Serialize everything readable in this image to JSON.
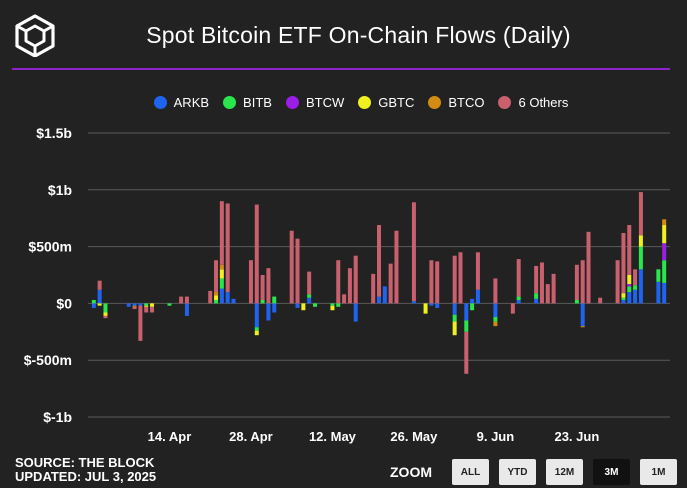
{
  "title": "Spot Bitcoin ETF On-Chain Flows (Daily)",
  "legend": [
    {
      "name": "ARKB",
      "color": "#1e64f0"
    },
    {
      "name": "BITB",
      "color": "#28e64b"
    },
    {
      "name": "BTCW",
      "color": "#9b1ee6"
    },
    {
      "name": "GBTC",
      "color": "#f0f01e"
    },
    {
      "name": "BTCO",
      "color": "#d28c14"
    },
    {
      "name": "6 Others",
      "color": "#c8606e"
    }
  ],
  "footer": {
    "source": "SOURCE: THE BLOCK",
    "updated": "UPDATED: JUL 3, 2025"
  },
  "zoom": {
    "label": "ZOOM",
    "buttons": [
      "ALL",
      "YTD",
      "12M",
      "3M",
      "1M"
    ],
    "active": "3M"
  },
  "chart_data": {
    "type": "bar",
    "stacked": true,
    "y_ticks": [
      "$1.5b",
      "$1b",
      "$500m",
      "$0",
      "$-500m",
      "$-1b"
    ],
    "y_tick_values": [
      1500,
      1000,
      500,
      0,
      -500,
      -1000
    ],
    "ylim": [
      -1000,
      1500
    ],
    "y_unit": "millions USD",
    "x_ticks": [
      "14. Apr",
      "28. Apr",
      "12. May",
      "26. May",
      "9. Jun",
      "23. Jun"
    ],
    "x_tick_dates": [
      "2025-04-14",
      "2025-04-28",
      "2025-05-12",
      "2025-05-26",
      "2025-06-09",
      "2025-06-23"
    ],
    "grid": "horizontal",
    "legend_position": "top-center",
    "series_order": [
      "ARKB",
      "BITB",
      "BTCW",
      "GBTC",
      "BTCO",
      "6 Others"
    ],
    "days": [
      {
        "date": "2025-04-01",
        "v": [
          -40,
          30,
          0,
          0,
          0,
          0
        ]
      },
      {
        "date": "2025-04-02",
        "v": [
          120,
          0,
          0,
          -20,
          0,
          80
        ]
      },
      {
        "date": "2025-04-03",
        "v": [
          0,
          -80,
          0,
          -30,
          0,
          -20
        ]
      },
      {
        "date": "2025-04-07",
        "v": [
          -30,
          0,
          0,
          0,
          0,
          0
        ]
      },
      {
        "date": "2025-04-08",
        "v": [
          -20,
          0,
          0,
          0,
          -10,
          -20
        ]
      },
      {
        "date": "2025-04-09",
        "v": [
          -20,
          0,
          0,
          0,
          0,
          -310
        ]
      },
      {
        "date": "2025-04-10",
        "v": [
          0,
          -20,
          0,
          -10,
          0,
          -50
        ]
      },
      {
        "date": "2025-04-11",
        "v": [
          0,
          0,
          0,
          -30,
          0,
          -50
        ]
      },
      {
        "date": "2025-04-14",
        "v": [
          0,
          -20,
          0,
          0,
          0,
          0
        ]
      },
      {
        "date": "2025-04-15",
        "v": [
          0,
          0,
          0,
          0,
          0,
          0
        ]
      },
      {
        "date": "2025-04-16",
        "v": [
          0,
          0,
          0,
          0,
          0,
          60
        ]
      },
      {
        "date": "2025-04-17",
        "v": [
          -110,
          0,
          0,
          0,
          0,
          60
        ]
      },
      {
        "date": "2025-04-21",
        "v": [
          0,
          0,
          0,
          0,
          0,
          110
        ]
      },
      {
        "date": "2025-04-22",
        "v": [
          0,
          30,
          0,
          40,
          30,
          280
        ]
      },
      {
        "date": "2025-04-23",
        "v": [
          130,
          90,
          0,
          80,
          40,
          560
        ]
      },
      {
        "date": "2025-04-24",
        "v": [
          100,
          0,
          0,
          0,
          0,
          780
        ]
      },
      {
        "date": "2025-04-25",
        "v": [
          40,
          0,
          0,
          0,
          0,
          0
        ]
      },
      {
        "date": "2025-04-28",
        "v": [
          0,
          0,
          0,
          0,
          0,
          380
        ]
      },
      {
        "date": "2025-04-29",
        "v": [
          -210,
          -30,
          0,
          -40,
          0,
          870
        ]
      },
      {
        "date": "2025-04-30",
        "v": [
          0,
          30,
          0,
          0,
          0,
          220
        ]
      },
      {
        "date": "2025-05-01",
        "v": [
          -150,
          0,
          0,
          0,
          0,
          310
        ]
      },
      {
        "date": "2025-05-02",
        "v": [
          -80,
          60,
          0,
          0,
          0,
          0
        ]
      },
      {
        "date": "2025-05-05",
        "v": [
          0,
          0,
          0,
          0,
          0,
          640
        ]
      },
      {
        "date": "2025-05-06",
        "v": [
          -40,
          0,
          0,
          0,
          0,
          570
        ]
      },
      {
        "date": "2025-05-07",
        "v": [
          0,
          0,
          0,
          -60,
          0,
          0
        ]
      },
      {
        "date": "2025-05-08",
        "v": [
          50,
          30,
          0,
          0,
          0,
          200
        ]
      },
      {
        "date": "2025-05-09",
        "v": [
          0,
          -30,
          0,
          0,
          0,
          0
        ]
      },
      {
        "date": "2025-05-12",
        "v": [
          0,
          -20,
          0,
          -40,
          0,
          0
        ]
      },
      {
        "date": "2025-05-13",
        "v": [
          0,
          -30,
          0,
          0,
          0,
          380
        ]
      },
      {
        "date": "2025-05-14",
        "v": [
          0,
          0,
          0,
          0,
          0,
          80
        ]
      },
      {
        "date": "2025-05-15",
        "v": [
          0,
          0,
          0,
          0,
          0,
          310
        ]
      },
      {
        "date": "2025-05-16",
        "v": [
          -160,
          0,
          0,
          0,
          0,
          420
        ]
      },
      {
        "date": "2025-05-19",
        "v": [
          0,
          0,
          0,
          0,
          0,
          260
        ]
      },
      {
        "date": "2025-05-20",
        "v": [
          60,
          0,
          0,
          0,
          0,
          630
        ]
      },
      {
        "date": "2025-05-21",
        "v": [
          150,
          0,
          0,
          0,
          0,
          0
        ]
      },
      {
        "date": "2025-05-22",
        "v": [
          0,
          0,
          0,
          0,
          0,
          350
        ]
      },
      {
        "date": "2025-05-23",
        "v": [
          0,
          0,
          0,
          0,
          0,
          640
        ]
      },
      {
        "date": "2025-05-26",
        "v": [
          20,
          0,
          0,
          0,
          0,
          870
        ]
      },
      {
        "date": "2025-05-28",
        "v": [
          0,
          0,
          0,
          -90,
          0,
          0
        ]
      },
      {
        "date": "2025-05-29",
        "v": [
          -20,
          0,
          0,
          0,
          0,
          380
        ]
      },
      {
        "date": "2025-05-30",
        "v": [
          -40,
          0,
          0,
          0,
          0,
          370
        ]
      },
      {
        "date": "2025-06-02",
        "v": [
          -100,
          -60,
          0,
          -120,
          0,
          420
        ]
      },
      {
        "date": "2025-06-03",
        "v": [
          0,
          0,
          0,
          0,
          0,
          450
        ]
      },
      {
        "date": "2025-06-04",
        "v": [
          -150,
          -100,
          0,
          0,
          0,
          -370
        ]
      },
      {
        "date": "2025-06-05",
        "v": [
          40,
          -60,
          0,
          0,
          0,
          0
        ]
      },
      {
        "date": "2025-06-06",
        "v": [
          120,
          0,
          0,
          0,
          0,
          330
        ]
      },
      {
        "date": "2025-06-09",
        "v": [
          -120,
          -40,
          0,
          0,
          -40,
          220
        ]
      },
      {
        "date": "2025-06-10",
        "v": [
          0,
          0,
          0,
          0,
          0,
          0
        ]
      },
      {
        "date": "2025-06-12",
        "v": [
          0,
          0,
          0,
          0,
          0,
          -90
        ]
      },
      {
        "date": "2025-06-13",
        "v": [
          30,
          30,
          0,
          0,
          0,
          330
        ]
      },
      {
        "date": "2025-06-16",
        "v": [
          40,
          50,
          0,
          0,
          0,
          240
        ]
      },
      {
        "date": "2025-06-17",
        "v": [
          0,
          0,
          0,
          0,
          0,
          360
        ]
      },
      {
        "date": "2025-06-18",
        "v": [
          0,
          0,
          0,
          0,
          0,
          170
        ]
      },
      {
        "date": "2025-06-19",
        "v": [
          0,
          0,
          0,
          0,
          0,
          260
        ]
      },
      {
        "date": "2025-06-23",
        "v": [
          0,
          30,
          0,
          0,
          0,
          310
        ]
      },
      {
        "date": "2025-06-24",
        "v": [
          -200,
          0,
          0,
          0,
          -10,
          380
        ]
      },
      {
        "date": "2025-06-25",
        "v": [
          0,
          0,
          0,
          0,
          0,
          630
        ]
      },
      {
        "date": "2025-06-27",
        "v": [
          0,
          0,
          0,
          0,
          0,
          50
        ]
      },
      {
        "date": "2025-06-30",
        "v": [
          0,
          0,
          0,
          0,
          0,
          380
        ]
      },
      {
        "date": "2025-07-01",
        "v": [
          30,
          20,
          0,
          40,
          0,
          530
        ]
      },
      {
        "date": "2025-07-02",
        "v": [
          100,
          50,
          20,
          80,
          0,
          440
        ]
      },
      {
        "date": "2025-07-03",
        "v": [
          120,
          40,
          0,
          0,
          0,
          140
        ]
      },
      {
        "date": "2025-07-04",
        "v": [
          300,
          200,
          0,
          100,
          0,
          380
        ]
      },
      {
        "date": "2025-07-07",
        "v": [
          190,
          110,
          0,
          0,
          0,
          0
        ]
      },
      {
        "date": "2025-07-08",
        "v": [
          180,
          200,
          150,
          160,
          50,
          0
        ]
      }
    ]
  }
}
